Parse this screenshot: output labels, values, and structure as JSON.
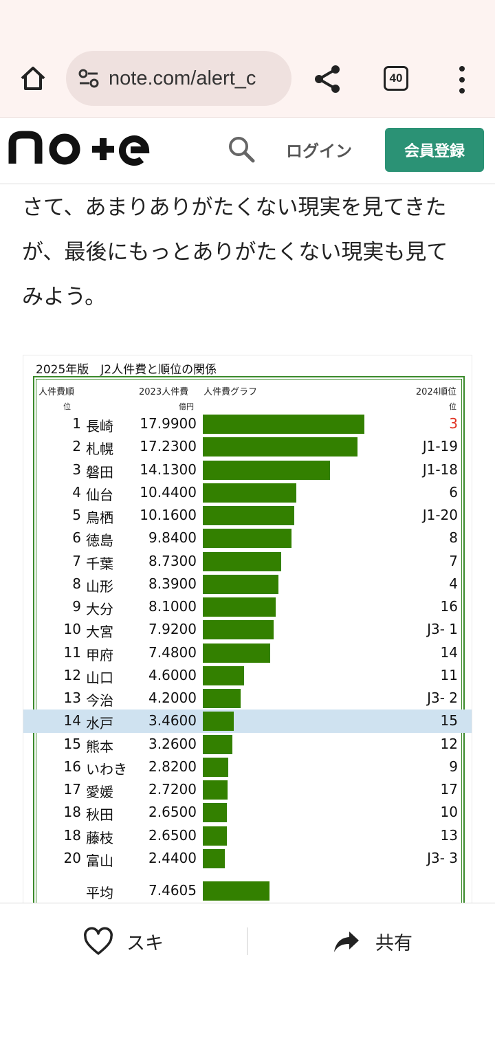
{
  "browser": {
    "url": "note.com/alert_c",
    "tab_count": "40"
  },
  "site": {
    "search_label": "",
    "login": "ログイン",
    "signup": "会員登録"
  },
  "article": {
    "lines": [
      "さて、あまりありがたくない現実を見てきた",
      "が、最後にもっとありがたくない現実も見て",
      "みよう。"
    ]
  },
  "table": {
    "title": "2025年版　J2人件費と順位の関係",
    "headers": {
      "rank": "人件費順",
      "rank_sub": "位",
      "cost": "2023人件費",
      "cost_unit": "億円",
      "graph": "人件費グラフ",
      "pos": "2024順位",
      "pos_sub": "位"
    },
    "highlight_color": "#cfe2f0",
    "bar_color": "#338000",
    "rows": [
      {
        "rank": "1",
        "team": "長崎",
        "cost": "17.9900",
        "pos": "3",
        "pos_color": "#e03020"
      },
      {
        "rank": "2",
        "team": "札幌",
        "cost": "17.2300",
        "pos": "J1-19"
      },
      {
        "rank": "3",
        "team": "磐田",
        "cost": "14.1300",
        "pos": "J1-18"
      },
      {
        "rank": "4",
        "team": "仙台",
        "cost": "10.4400",
        "pos": "6"
      },
      {
        "rank": "5",
        "team": "鳥栖",
        "cost": "10.1600",
        "pos": "J1-20"
      },
      {
        "rank": "6",
        "team": "徳島",
        "cost": "9.8400",
        "pos": "8"
      },
      {
        "rank": "7",
        "team": "千葉",
        "cost": "8.7300",
        "pos": "7"
      },
      {
        "rank": "8",
        "team": "山形",
        "cost": "8.3900",
        "pos": "4"
      },
      {
        "rank": "9",
        "team": "大分",
        "cost": "8.1000",
        "pos": "16"
      },
      {
        "rank": "10",
        "team": "大宮",
        "cost": "7.9200",
        "pos": "J3- 1"
      },
      {
        "rank": "11",
        "team": "甲府",
        "cost": "7.4800",
        "pos": "14"
      },
      {
        "rank": "12",
        "team": "山口",
        "cost": "4.6000",
        "pos": "11"
      },
      {
        "rank": "13",
        "team": "今治",
        "cost": "4.2000",
        "pos": "J3- 2"
      },
      {
        "rank": "14",
        "team": "水戸",
        "cost": "3.4600",
        "pos": "15",
        "highlight": true
      },
      {
        "rank": "15",
        "team": "熊本",
        "cost": "3.2600",
        "pos": "12"
      },
      {
        "rank": "16",
        "team": "いわき",
        "cost": "2.8200",
        "pos": "9"
      },
      {
        "rank": "17",
        "team": "愛媛",
        "cost": "2.7200",
        "pos": "17"
      },
      {
        "rank": "18",
        "team": "秋田",
        "cost": "2.6500",
        "pos": "10"
      },
      {
        "rank": "18",
        "team": "藤枝",
        "cost": "2.6500",
        "pos": "13"
      },
      {
        "rank": "20",
        "team": "富山",
        "cost": "2.4400",
        "pos": "J3- 3"
      }
    ],
    "average": {
      "label": "平均",
      "cost": "7.4605"
    }
  },
  "chart_data": {
    "type": "bar",
    "title": "2025年版　J2人件費と順位の関係",
    "ylabel": "2023人件費",
    "categories": [
      "長崎",
      "札幌",
      "磐田",
      "仙台",
      "鳥栖",
      "徳島",
      "千葉",
      "山形",
      "大分",
      "大宮",
      "甲府",
      "山口",
      "今治",
      "水戸",
      "熊本",
      "いわき",
      "愛媛",
      "秋田",
      "藤枝",
      "富山",
      "平均"
    ],
    "values": [
      17.99,
      17.23,
      14.13,
      10.44,
      10.16,
      9.84,
      8.73,
      8.39,
      8.1,
      7.92,
      7.48,
      4.6,
      4.2,
      3.46,
      3.26,
      2.82,
      2.72,
      2.65,
      2.65,
      2.44,
      7.4605
    ],
    "orientation": "horizontal",
    "xlim": [
      0,
      18
    ]
  },
  "actions": {
    "like": "スキ",
    "share": "共有"
  }
}
